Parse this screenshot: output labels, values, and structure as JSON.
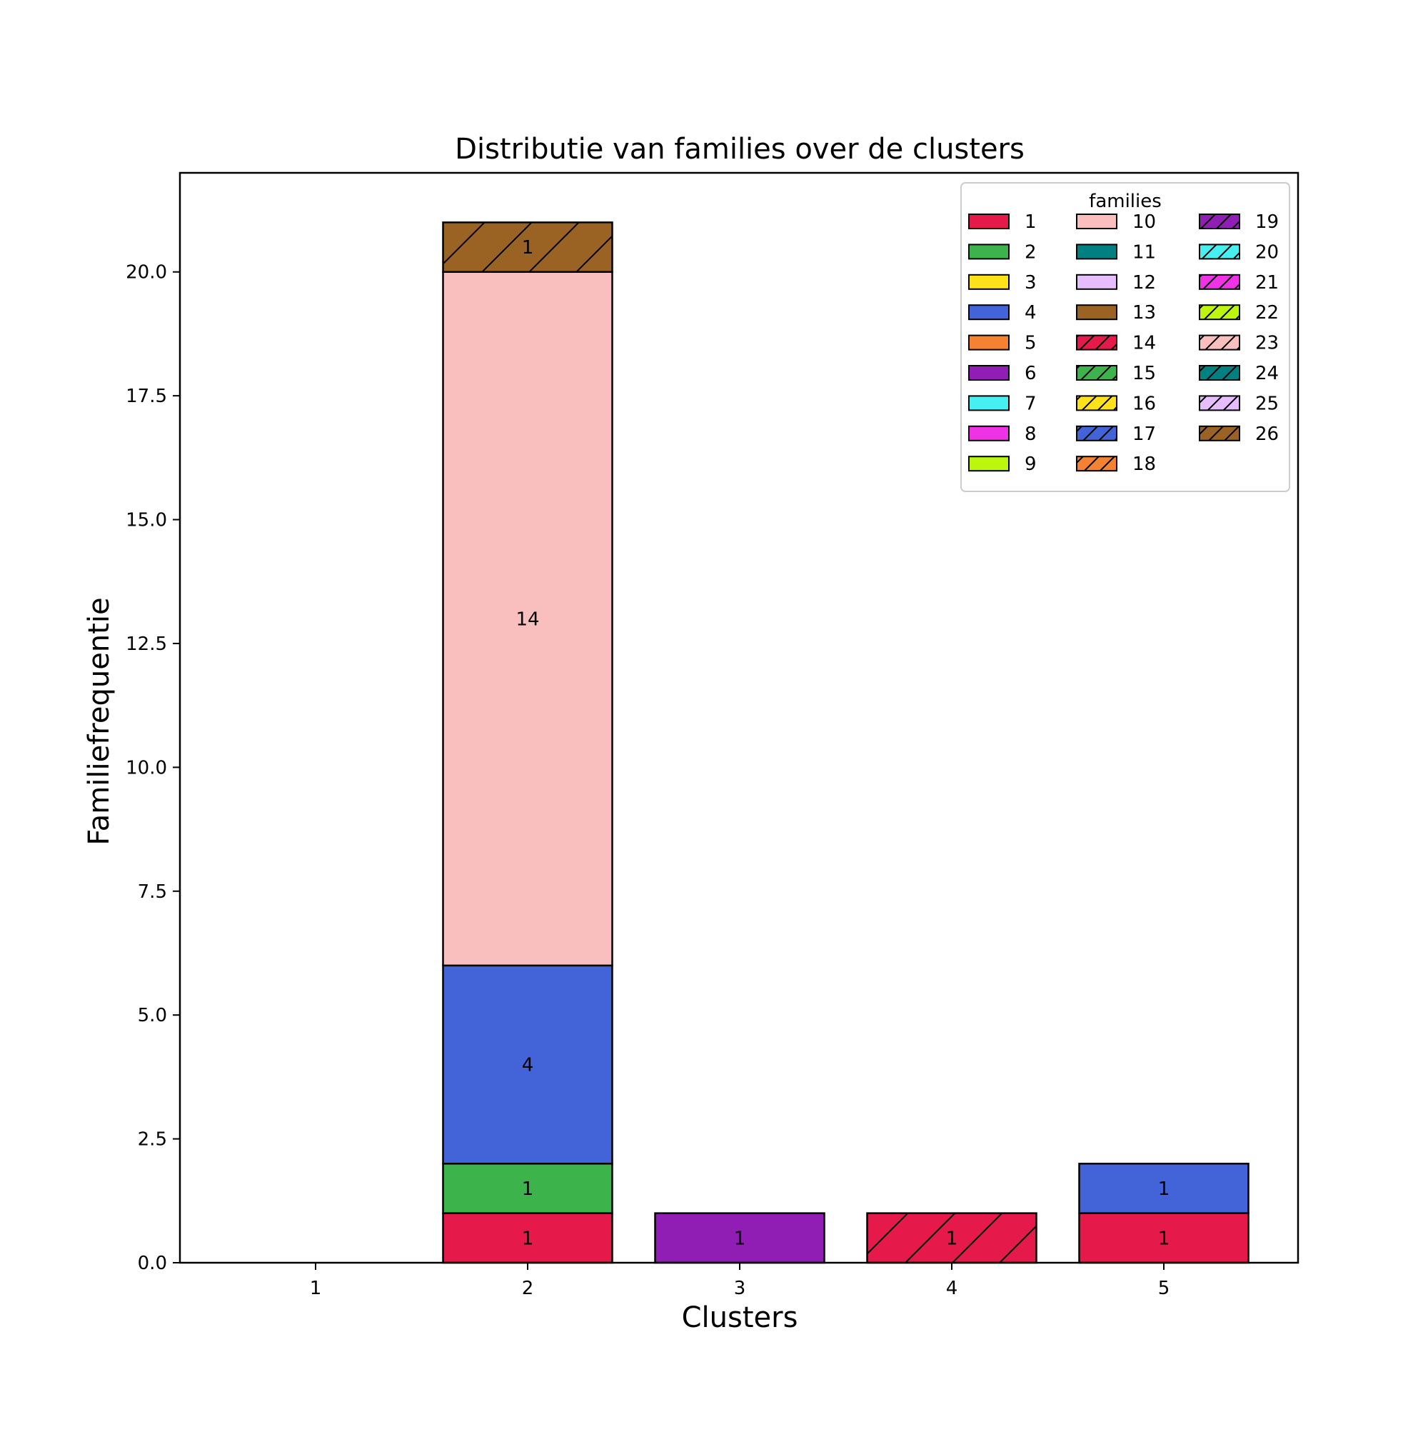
{
  "chart_data": {
    "type": "bar",
    "stacked": true,
    "title": "Distributie van families over de clusters",
    "xlabel": "Clusters",
    "ylabel": "Familiefrequentie",
    "categories": [
      "1",
      "2",
      "3",
      "4",
      "5"
    ],
    "ylim": [
      0,
      22
    ],
    "yticks": [
      0.0,
      2.5,
      5.0,
      7.5,
      10.0,
      12.5,
      15.0,
      17.5,
      20.0
    ],
    "ytick_labels": [
      "0.0",
      "2.5",
      "5.0",
      "7.5",
      "10.0",
      "12.5",
      "15.0",
      "17.5",
      "20.0"
    ],
    "grid": false,
    "legend": {
      "title": "families",
      "position": "top-right",
      "columns": 3,
      "entries": [
        {
          "label": "1",
          "color": "#e6194b",
          "hatch": false
        },
        {
          "label": "2",
          "color": "#3cb44b",
          "hatch": false
        },
        {
          "label": "3",
          "color": "#ffe119",
          "hatch": false
        },
        {
          "label": "4",
          "color": "#4363d8",
          "hatch": false
        },
        {
          "label": "5",
          "color": "#f58231",
          "hatch": false
        },
        {
          "label": "6",
          "color": "#911eb4",
          "hatch": false
        },
        {
          "label": "7",
          "color": "#46f0f0",
          "hatch": false
        },
        {
          "label": "8",
          "color": "#f032e6",
          "hatch": false
        },
        {
          "label": "9",
          "color": "#bcf60c",
          "hatch": false
        },
        {
          "label": "10",
          "color": "#fabebe",
          "hatch": false
        },
        {
          "label": "11",
          "color": "#008080",
          "hatch": false
        },
        {
          "label": "12",
          "color": "#e6beff",
          "hatch": false
        },
        {
          "label": "13",
          "color": "#9a6324",
          "hatch": false
        },
        {
          "label": "14",
          "color": "#e6194b",
          "hatch": true
        },
        {
          "label": "15",
          "color": "#3cb44b",
          "hatch": true
        },
        {
          "label": "16",
          "color": "#ffe119",
          "hatch": true
        },
        {
          "label": "17",
          "color": "#4363d8",
          "hatch": true
        },
        {
          "label": "18",
          "color": "#f58231",
          "hatch": true
        },
        {
          "label": "19",
          "color": "#911eb4",
          "hatch": true
        },
        {
          "label": "20",
          "color": "#46f0f0",
          "hatch": true
        },
        {
          "label": "21",
          "color": "#f032e6",
          "hatch": true
        },
        {
          "label": "22",
          "color": "#bcf60c",
          "hatch": true
        },
        {
          "label": "23",
          "color": "#fabebe",
          "hatch": true
        },
        {
          "label": "24",
          "color": "#008080",
          "hatch": true
        },
        {
          "label": "25",
          "color": "#e6beff",
          "hatch": true
        },
        {
          "label": "26",
          "color": "#9a6324",
          "hatch": true
        }
      ]
    },
    "segments": [
      {
        "cluster": "2",
        "family": "1",
        "value": 1,
        "color": "#e6194b",
        "hatch": false
      },
      {
        "cluster": "2",
        "family": "2",
        "value": 1,
        "color": "#3cb44b",
        "hatch": false
      },
      {
        "cluster": "2",
        "family": "4",
        "value": 4,
        "color": "#4363d8",
        "hatch": false
      },
      {
        "cluster": "2",
        "family": "10",
        "value": 14,
        "color": "#f9bebe",
        "hatch": false
      },
      {
        "cluster": "2",
        "family": "26",
        "value": 1,
        "color": "#9a6324",
        "hatch": true
      },
      {
        "cluster": "3",
        "family": "6",
        "value": 1,
        "color": "#911eb4",
        "hatch": false
      },
      {
        "cluster": "4",
        "family": "14",
        "value": 1,
        "color": "#e6194b",
        "hatch": true
      },
      {
        "cluster": "5",
        "family": "1",
        "value": 1,
        "color": "#e6194b",
        "hatch": false
      },
      {
        "cluster": "5",
        "family": "4",
        "value": 1,
        "color": "#4363d8",
        "hatch": false
      }
    ]
  }
}
